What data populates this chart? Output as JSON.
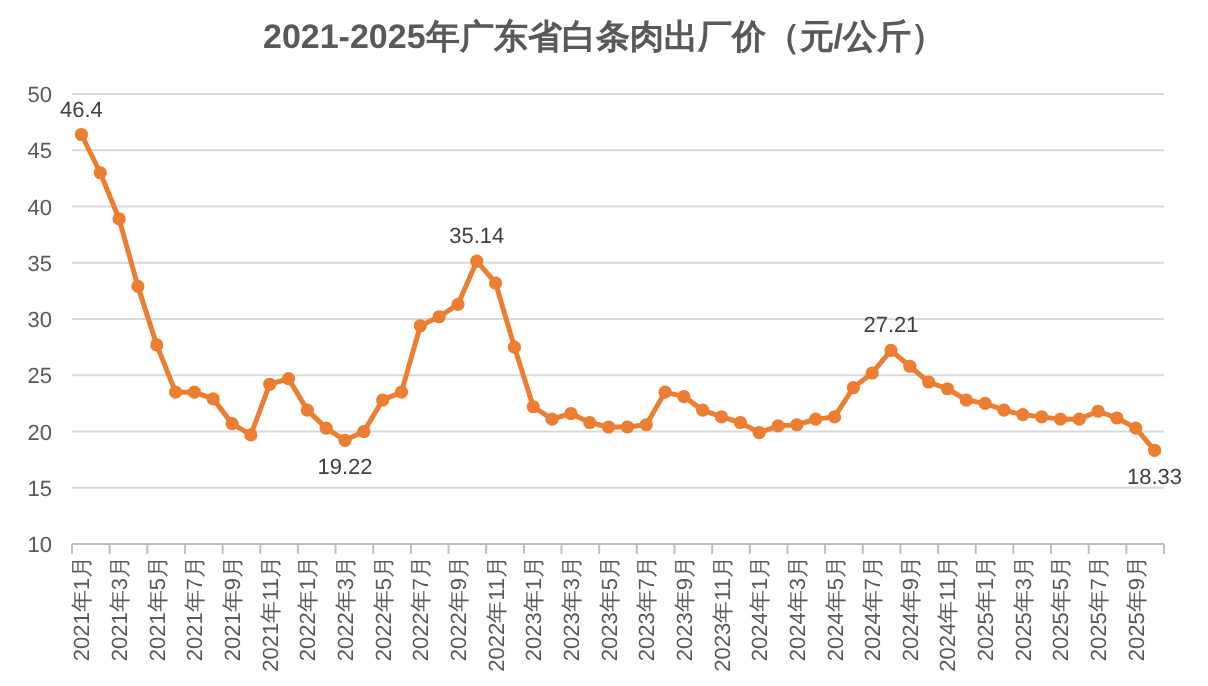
{
  "chart_data": {
    "type": "line",
    "title": "2021-2025年广东省白条肉出厂价（元/公斤）",
    "categories": [
      "2021年1月",
      null,
      "2021年3月",
      null,
      "2021年5月",
      null,
      "2021年7月",
      null,
      "2021年9月",
      null,
      "2021年11月",
      null,
      "2022年1月",
      null,
      "2022年3月",
      null,
      "2022年5月",
      null,
      "2022年7月",
      null,
      "2022年9月",
      null,
      "2022年11月",
      null,
      "2023年1月",
      null,
      "2023年3月",
      null,
      "2023年5月",
      null,
      "2023年7月",
      null,
      "2023年9月",
      null,
      "2023年11月",
      null,
      "2024年1月",
      null,
      "2024年3月",
      null,
      "2024年5月",
      null,
      "2024年7月",
      null,
      "2024年9月",
      null,
      "2024年11月",
      null,
      "2025年1月",
      null,
      "2025年3月",
      null,
      "2025年5月",
      null,
      "2025年7月",
      null,
      "2025年9月",
      null
    ],
    "series": [
      {
        "color": "#ed7d31",
        "values": [
          46.4,
          43.0,
          38.9,
          32.9,
          27.7,
          23.5,
          23.5,
          22.9,
          20.7,
          19.7,
          24.2,
          24.7,
          21.9,
          20.3,
          19.22,
          20.0,
          22.8,
          23.5,
          29.4,
          30.2,
          31.3,
          35.14,
          33.2,
          27.5,
          22.2,
          21.1,
          21.6,
          20.8,
          20.4,
          20.4,
          20.6,
          23.5,
          23.1,
          21.9,
          21.3,
          20.8,
          19.9,
          20.5,
          20.6,
          21.1,
          21.3,
          23.9,
          25.2,
          27.21,
          25.8,
          24.4,
          23.8,
          22.8,
          22.5,
          21.9,
          21.5,
          21.3,
          21.1,
          21.1,
          21.8,
          21.2,
          20.3,
          18.33
        ],
        "value_labels": [
          "46.4",
          null,
          null,
          null,
          null,
          null,
          null,
          null,
          null,
          null,
          null,
          null,
          null,
          null,
          "19.22",
          null,
          null,
          null,
          null,
          null,
          null,
          "35.14",
          null,
          null,
          null,
          null,
          null,
          null,
          null,
          null,
          null,
          null,
          null,
          null,
          null,
          null,
          null,
          null,
          null,
          null,
          null,
          null,
          null,
          "27.21",
          null,
          null,
          null,
          null,
          null,
          null,
          null,
          null,
          null,
          null,
          null,
          null,
          null,
          "18.33"
        ]
      }
    ],
    "ylim": [
      10,
      50
    ],
    "yticks": [
      10,
      15,
      20,
      25,
      30,
      35,
      40,
      45,
      50
    ],
    "grid": "y",
    "marker": "circle",
    "line_style": "solid"
  }
}
